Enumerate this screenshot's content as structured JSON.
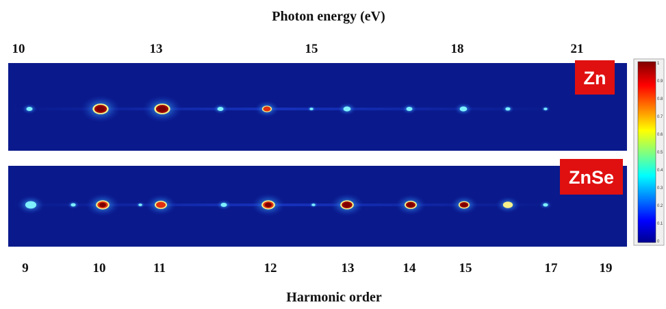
{
  "top_axis": {
    "title": "Photon energy (eV)",
    "labels": [
      "10",
      "13",
      "15",
      "18",
      "21"
    ]
  },
  "bottom_axis": {
    "title": "Harmonic order",
    "labels": [
      "9",
      "10",
      "11",
      "12",
      "13",
      "14",
      "15",
      "17",
      "19"
    ]
  },
  "panels": [
    {
      "label": "Zn"
    },
    {
      "label": "ZnSe"
    }
  ],
  "colorbar": {
    "labels": [
      "1",
      "0.9",
      "0.8",
      "0.7",
      "0.6",
      "0.5",
      "0.4",
      "0.3",
      "0.2",
      "0.1",
      "0"
    ]
  }
}
